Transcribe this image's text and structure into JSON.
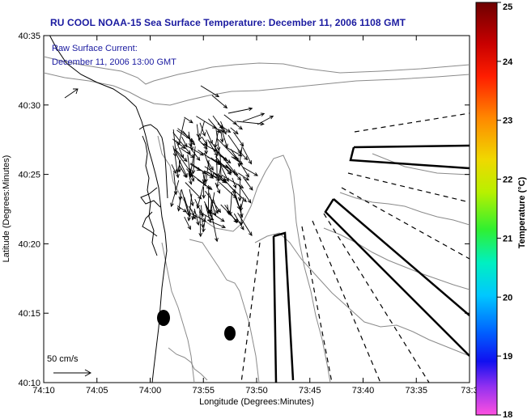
{
  "title": "RU COOL  NOAA-15  Sea Surface Temperature:  December 11, 2006 1108 GMT",
  "annotation": {
    "line1": "Raw Surface Current:",
    "line2": "December 11, 2006 13:00 GMT"
  },
  "scale_label": "50 cm/s",
  "axes": {
    "xlabel": "Longitude (Degrees:Minutes)",
    "ylabel": "Latitude (Degrees:Minutes)",
    "xticks": [
      "74:10",
      "74:05",
      "74:00",
      "73:55",
      "73:50",
      "73:45",
      "73:40",
      "73:35",
      "73:3"
    ],
    "yticks": [
      "40:35",
      "40:30",
      "40:25",
      "40:20",
      "40:15",
      "40:10"
    ]
  },
  "colorbar": {
    "label": "Temperature (°C)",
    "ticks": [
      "25",
      "24",
      "23",
      "22",
      "21",
      "20",
      "19",
      "18"
    ],
    "range": [
      18,
      25
    ]
  },
  "colors": {
    "title": "#1a1aa0",
    "annotation": "#1a1aa0",
    "coastline": "#000000",
    "bathymetry": "#888888"
  }
}
